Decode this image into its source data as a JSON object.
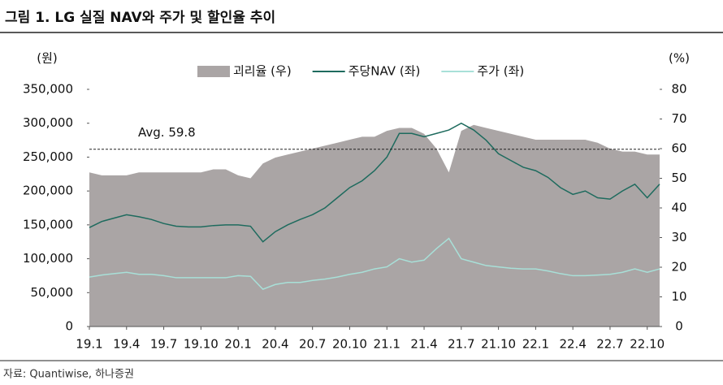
{
  "chart_data": {
    "type": "area-line",
    "title": "그림 1. LG 실질 NAV와 주가 및 할인율 추이",
    "y_label": "(원)",
    "y2_label": "(%)",
    "source": "자료: Quantiwise, 하나증권",
    "annotation": {
      "text": "Avg. 59.8",
      "value": 59.8
    },
    "categories": [
      "19.1",
      null,
      null,
      "19.4",
      null,
      null,
      "19.7",
      null,
      null,
      "19.10",
      null,
      null,
      "20.1",
      null,
      null,
      "20.4",
      null,
      null,
      "20.7",
      null,
      null,
      "20.10",
      null,
      null,
      "21.1",
      null,
      null,
      "21.4",
      null,
      null,
      "21.7",
      null,
      null,
      "21.10",
      null,
      null,
      "22.1",
      null,
      null,
      "22.4",
      null,
      null,
      "22.7",
      null,
      null,
      "22.10",
      null
    ],
    "series": [
      {
        "name": "괴리율 (우)",
        "color": "#aaa5a5",
        "axis": "y2",
        "kind": "area",
        "values": [
          52,
          51,
          51,
          51,
          52,
          52,
          52,
          52,
          52,
          52,
          53,
          53,
          51,
          50,
          55,
          57,
          58,
          59,
          60,
          61,
          62,
          63,
          64,
          64,
          66,
          67,
          67,
          65,
          60,
          52,
          66,
          68,
          67,
          66,
          65,
          64,
          63,
          63,
          63,
          63,
          63,
          62,
          60,
          59,
          59,
          58,
          58
        ]
      },
      {
        "name": "주당NAV (좌)",
        "color": "#1e6b5e",
        "axis": "y",
        "kind": "line",
        "values": [
          146000,
          155000,
          160000,
          165000,
          162000,
          158000,
          152000,
          148000,
          147000,
          147000,
          149000,
          150000,
          150000,
          148000,
          125000,
          140000,
          150000,
          158000,
          165000,
          175000,
          190000,
          205000,
          215000,
          230000,
          250000,
          285000,
          285000,
          280000,
          285000,
          290000,
          300000,
          290000,
          275000,
          255000,
          245000,
          235000,
          230000,
          220000,
          205000,
          195000,
          200000,
          190000,
          188000,
          200000,
          210000,
          190000,
          210000
        ]
      },
      {
        "name": "주가 (좌)",
        "color": "#a8e0d8",
        "axis": "y",
        "kind": "line",
        "values": [
          73000,
          76000,
          78000,
          80000,
          77000,
          77000,
          75000,
          72000,
          72000,
          72000,
          72000,
          72000,
          75000,
          74000,
          55000,
          62000,
          65000,
          65000,
          68000,
          70000,
          73000,
          77000,
          80000,
          85000,
          88000,
          100000,
          95000,
          98000,
          115000,
          130000,
          100000,
          95000,
          90000,
          88000,
          86000,
          85000,
          85000,
          82000,
          78000,
          75000,
          75000,
          76000,
          77000,
          80000,
          85000,
          80000,
          85000
        ]
      }
    ],
    "ylim": [
      0,
      350000
    ],
    "yticks": [
      0,
      {
        "value": 50000,
        "label": "50,000"
      },
      {
        "value": 100000,
        "label": "100,000"
      },
      {
        "value": 150000,
        "label": "150,000"
      },
      {
        "value": 200000,
        "label": "200,000"
      },
      {
        "value": 250000,
        "label": "250,000"
      },
      {
        "value": 300000,
        "label": "300,000"
      },
      {
        "value": 350000,
        "label": "350,000"
      }
    ],
    "y2lim": [
      0,
      80
    ],
    "y2ticks": [
      0,
      10,
      20,
      30,
      40,
      50,
      60,
      70,
      80
    ]
  }
}
